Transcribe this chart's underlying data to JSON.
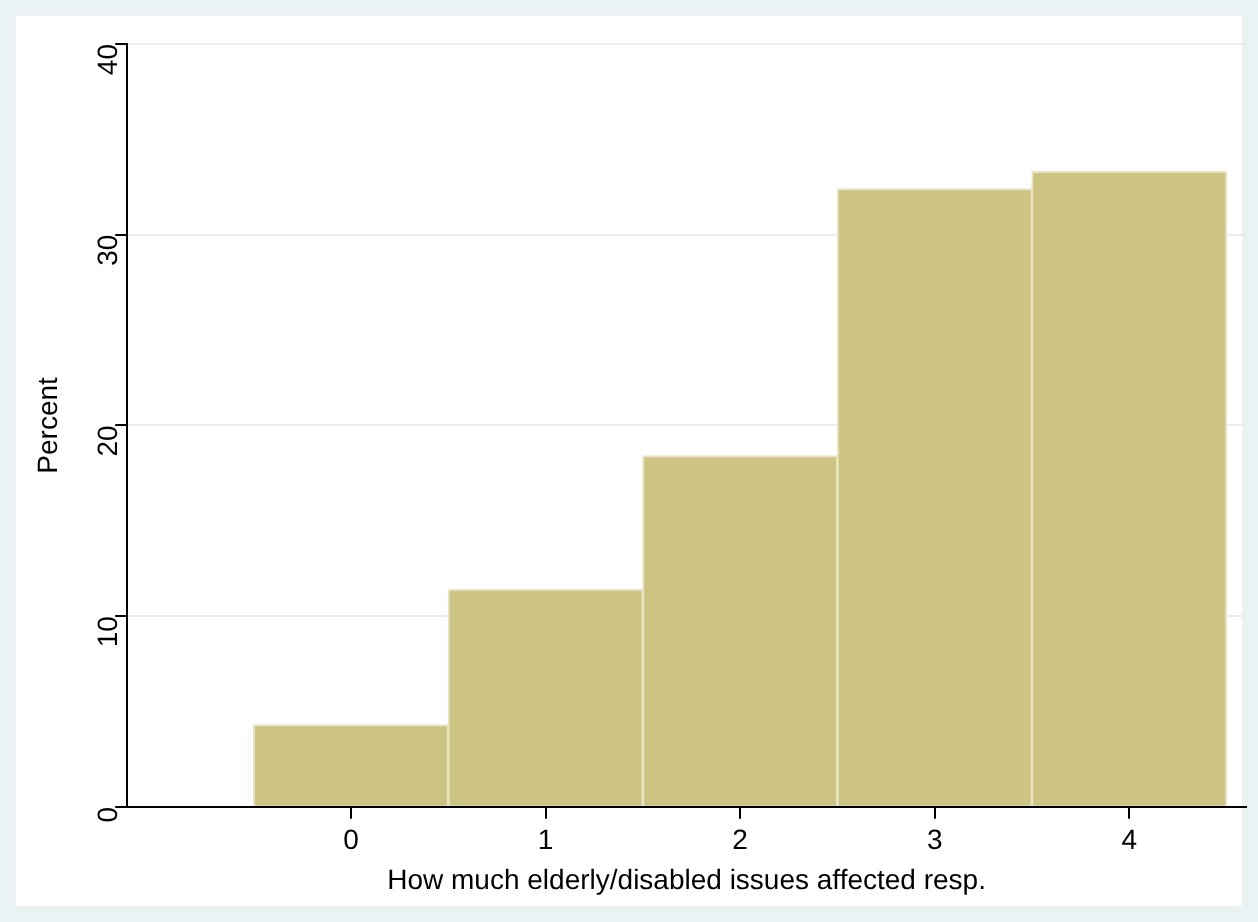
{
  "chart_data": {
    "type": "histogram",
    "xlabel": "How much elderly/disabled issues affected resp.",
    "ylabel": "Percent",
    "bins": [
      -0.5,
      0.5,
      1.5,
      2.5,
      3.5,
      4.5
    ],
    "values": [
      4.3,
      11.4,
      18.4,
      32.4,
      33.3
    ],
    "color": "#cdc383",
    "xlim": [
      -1.15,
      4.6
    ],
    "xticks": [
      0,
      1,
      2,
      3,
      4
    ],
    "ylim": [
      0,
      40
    ],
    "yticks": [
      0,
      10,
      20,
      30,
      40
    ],
    "grid": "y"
  }
}
